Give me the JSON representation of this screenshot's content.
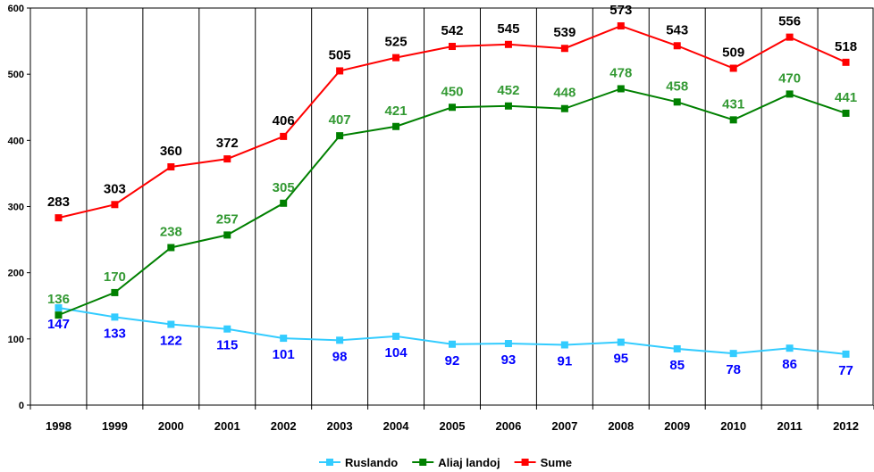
{
  "chart_data": {
    "type": "line",
    "title": "",
    "xlabel": "",
    "ylabel": "",
    "ylim": [
      0,
      600
    ],
    "yticks": [
      "0",
      "100",
      "200",
      "300",
      "400",
      "500",
      "600"
    ],
    "categories": [
      "1998",
      "1999",
      "2000",
      "2001",
      "2002",
      "2003",
      "2004",
      "2005",
      "2006",
      "2007",
      "2008",
      "2009",
      "2010",
      "2011",
      "2012"
    ],
    "grid": "vertical",
    "legend": "bottom",
    "series": [
      {
        "name": "Ruslando",
        "color": "#33CCFF",
        "label_color": "#0000FF",
        "values": [
          147,
          133,
          122,
          115,
          101,
          98,
          104,
          92,
          93,
          91,
          95,
          85,
          78,
          86,
          77
        ],
        "label_position": "below"
      },
      {
        "name": "Aliaj landoj",
        "color": "#008000",
        "label_color": "#339933",
        "values": [
          136,
          170,
          238,
          257,
          305,
          407,
          421,
          450,
          452,
          448,
          478,
          458,
          431,
          470,
          441
        ],
        "label_position": "above"
      },
      {
        "name": "Sume",
        "color": "#FF0000",
        "label_color": "#000000",
        "values": [
          283,
          303,
          360,
          372,
          406,
          505,
          525,
          542,
          545,
          539,
          573,
          543,
          509,
          556,
          518
        ],
        "label_position": "above"
      }
    ]
  }
}
